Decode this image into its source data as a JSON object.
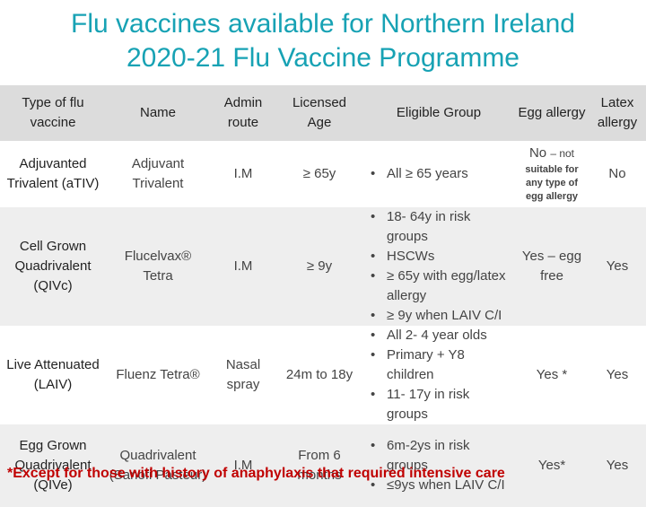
{
  "title": {
    "line1": "Flu vaccines available for Northern Ireland",
    "line2": "2020-21 Flu Vaccine Programme"
  },
  "headers": {
    "type": "Type of flu vaccine",
    "name": "Name",
    "route": "Admin route",
    "age": "Licensed Age",
    "eligible": "Eligible Group",
    "egg": "Egg allergy",
    "latex": "Latex allergy"
  },
  "rows": [
    {
      "type": "Adjuvanted Trivalent (aTIV)",
      "name": "Adjuvant Trivalent",
      "route": "I.M",
      "age": "≥ 65y",
      "eligible": [
        "All ≥ 65 years"
      ],
      "egg_main": "No",
      "egg_main_suffix": "– not",
      "egg_note": "suitable for any type of egg allergy",
      "latex": "No"
    },
    {
      "type": "Cell Grown Quadrivalent (QIVc)",
      "name": "Flucelvax® Tetra",
      "route": "I.M",
      "age": "≥ 9y",
      "eligible": [
        "18- 64y in risk groups",
        "HSCWs",
        "≥ 65y with egg/latex allergy",
        "≥ 9y when LAIV C/I"
      ],
      "egg": "Yes – egg free",
      "latex": "Yes"
    },
    {
      "type": "Live Attenuated (LAIV)",
      "name": "Fluenz Tetra®",
      "route": "Nasal spray",
      "age": "24m to 18y",
      "eligible": [
        "All 2- 4 year olds",
        "Primary + Y8 children",
        "11- 17y in risk groups"
      ],
      "egg": "Yes *",
      "latex": "Yes"
    },
    {
      "type": "Egg Grown Quadrivalent (QIVe)",
      "name": "Quadrivalent (Sanofi Pasteur)",
      "route": "I.M",
      "age": "From 6 months",
      "eligible": [
        "6m-2ys in risk groups",
        "≤9ys when LAIV C/I"
      ],
      "egg": "Yes*",
      "latex": "Yes"
    }
  ],
  "footnote": "*Except for those with history of anaphylaxis that required intensive care"
}
